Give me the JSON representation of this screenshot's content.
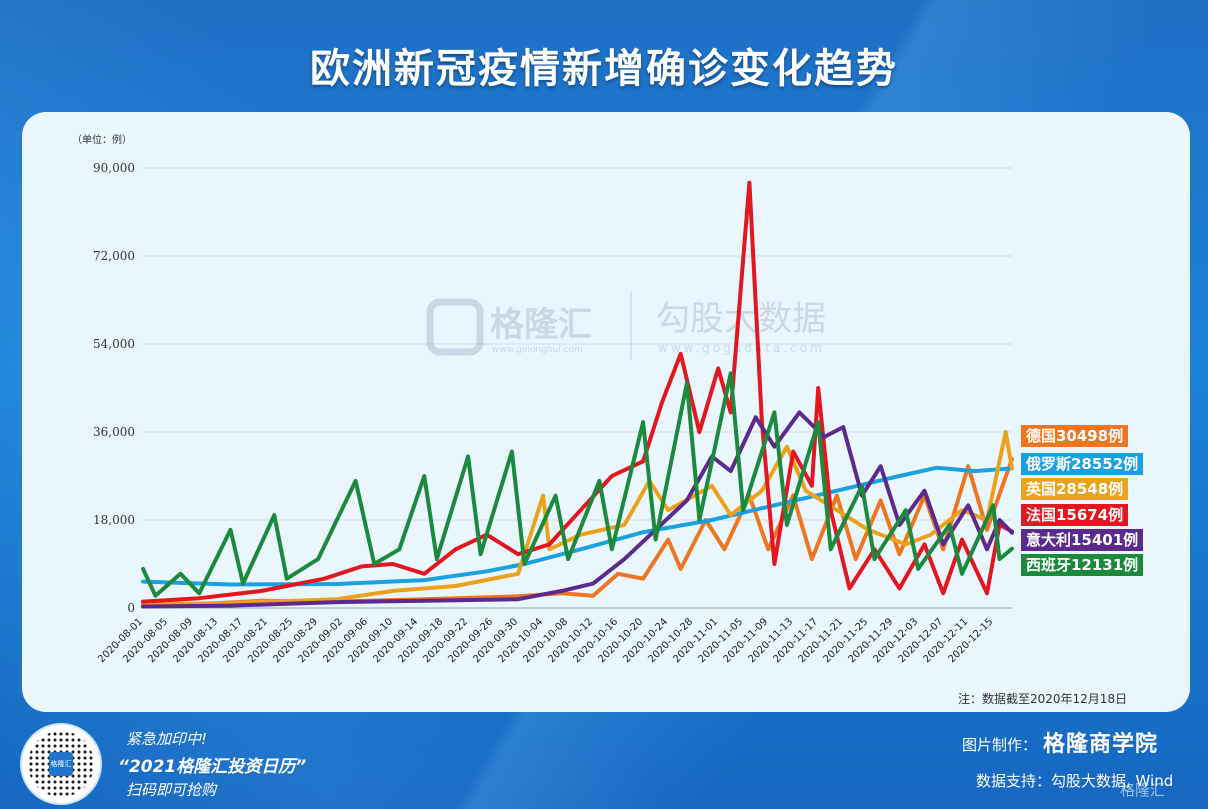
{
  "title": "欧洲新冠疫情新增确诊变化趋势",
  "unit_label": "（单位：例）",
  "note": "注：数据截至2020年12月18日",
  "watermark": {
    "brand1": "格隆汇",
    "brand1_url": "www.gelonghui.com",
    "brand2": "勾股大数据",
    "brand2_url": "www.gogudata.com"
  },
  "footer": {
    "promo_line1": "紧急加印中!",
    "promo_line2": "“2021格隆汇投资日历”",
    "promo_line3": "扫码即可抢购",
    "credit_label": "图片制作：",
    "credit_brand": "格隆商学院",
    "source_label": "数据支持：勾股大数据, Wind",
    "corner_logo": "格隆汇",
    "qr_center": "格隆汇"
  },
  "legend": [
    {
      "text": "德国30498例",
      "color": "#ee7623"
    },
    {
      "text": "俄罗斯28552例",
      "color": "#1ba1e2"
    },
    {
      "text": "英国28548例",
      "color": "#eba11b"
    },
    {
      "text": "法国15674例",
      "color": "#e3171f"
    },
    {
      "text": "意大利15401例",
      "color": "#5b2a8c"
    },
    {
      "text": "西班牙12131例",
      "color": "#1c8a3c"
    }
  ],
  "chart_data": {
    "type": "line",
    "ylim": [
      0,
      90000
    ],
    "yticks": [
      0,
      18000,
      36000,
      54000,
      72000,
      90000
    ],
    "ytick_labels": [
      "0",
      "18,000",
      "36,000",
      "54,000",
      "72,000",
      "90,000"
    ],
    "x_start": "2020-08-01",
    "x_end": "2020-12-18",
    "xtick_labels": [
      "2020-08-01",
      "2020-08-05",
      "2020-08-09",
      "2020-08-13",
      "2020-08-17",
      "2020-08-21",
      "2020-08-25",
      "2020-08-29",
      "2020-09-02",
      "2020-09-06",
      "2020-09-10",
      "2020-09-14",
      "2020-09-18",
      "2020-09-22",
      "2020-09-26",
      "2020-09-30",
      "2020-10-04",
      "2020-10-08",
      "2020-10-12",
      "2020-10-16",
      "2020-10-20",
      "2020-10-24",
      "2020-10-28",
      "2020-11-01",
      "2020-11-05",
      "2020-11-09",
      "2020-11-13",
      "2020-11-17",
      "2020-11-21",
      "2020-11-25",
      "2020-11-29",
      "2020-12-03",
      "2020-12-07",
      "2020-12-11",
      "2020-12-15"
    ],
    "grid": true,
    "series": [
      {
        "name": "德国",
        "color": "#ee7623",
        "points": [
          [
            "2020-08-01",
            500
          ],
          [
            "2020-08-10",
            800
          ],
          [
            "2020-08-20",
            1500
          ],
          [
            "2020-09-01",
            1300
          ],
          [
            "2020-09-15",
            1800
          ],
          [
            "2020-09-30",
            2400
          ],
          [
            "2020-10-07",
            3000
          ],
          [
            "2020-10-12",
            2500
          ],
          [
            "2020-10-16",
            7000
          ],
          [
            "2020-10-20",
            6000
          ],
          [
            "2020-10-24",
            14000
          ],
          [
            "2020-10-26",
            8000
          ],
          [
            "2020-10-30",
            18000
          ],
          [
            "2020-11-02",
            12000
          ],
          [
            "2020-11-06",
            23000
          ],
          [
            "2020-11-09",
            12000
          ],
          [
            "2020-11-13",
            23000
          ],
          [
            "2020-11-16",
            10000
          ],
          [
            "2020-11-20",
            23000
          ],
          [
            "2020-11-23",
            10000
          ],
          [
            "2020-11-27",
            22000
          ],
          [
            "2020-11-30",
            11000
          ],
          [
            "2020-12-04",
            23000
          ],
          [
            "2020-12-07",
            12000
          ],
          [
            "2020-12-11",
            29000
          ],
          [
            "2020-12-14",
            16000
          ],
          [
            "2020-12-18",
            30498
          ]
        ]
      },
      {
        "name": "俄罗斯",
        "color": "#1ba1e2",
        "points": [
          [
            "2020-08-01",
            5400
          ],
          [
            "2020-08-15",
            4800
          ],
          [
            "2020-09-01",
            4900
          ],
          [
            "2020-09-15",
            5700
          ],
          [
            "2020-09-25",
            7500
          ],
          [
            "2020-10-01",
            9000
          ],
          [
            "2020-10-10",
            12000
          ],
          [
            "2020-10-20",
            15500
          ],
          [
            "2020-10-31",
            18000
          ],
          [
            "2020-11-10",
            21000
          ],
          [
            "2020-11-20",
            24000
          ],
          [
            "2020-11-30",
            27000
          ],
          [
            "2020-12-06",
            28700
          ],
          [
            "2020-12-12",
            28000
          ],
          [
            "2020-12-18",
            28552
          ]
        ]
      },
      {
        "name": "英国",
        "color": "#eba11b",
        "points": [
          [
            "2020-08-01",
            800
          ],
          [
            "2020-08-15",
            1000
          ],
          [
            "2020-09-01",
            1800
          ],
          [
            "2020-09-10",
            3500
          ],
          [
            "2020-09-20",
            4500
          ],
          [
            "2020-09-30",
            7000
          ],
          [
            "2020-10-04",
            23000
          ],
          [
            "2020-10-05",
            12000
          ],
          [
            "2020-10-10",
            15000
          ],
          [
            "2020-10-17",
            17000
          ],
          [
            "2020-10-21",
            26000
          ],
          [
            "2020-10-24",
            20000
          ],
          [
            "2020-10-31",
            25000
          ],
          [
            "2020-11-03",
            19000
          ],
          [
            "2020-11-08",
            24000
          ],
          [
            "2020-11-12",
            33000
          ],
          [
            "2020-11-15",
            24000
          ],
          [
            "2020-11-20",
            20000
          ],
          [
            "2020-11-25",
            16000
          ],
          [
            "2020-12-01",
            13000
          ],
          [
            "2020-12-05",
            15000
          ],
          [
            "2020-12-10",
            20000
          ],
          [
            "2020-12-14",
            18000
          ],
          [
            "2020-12-17",
            36000
          ],
          [
            "2020-12-18",
            28548
          ]
        ]
      },
      {
        "name": "法国",
        "color": "#e3171f",
        "points": [
          [
            "2020-08-01",
            1300
          ],
          [
            "2020-08-10",
            2000
          ],
          [
            "2020-08-20",
            3500
          ],
          [
            "2020-08-30",
            6000
          ],
          [
            "2020-09-05",
            8500
          ],
          [
            "2020-09-10",
            9000
          ],
          [
            "2020-09-15",
            7000
          ],
          [
            "2020-09-20",
            12000
          ],
          [
            "2020-09-25",
            15000
          ],
          [
            "2020-09-30",
            11000
          ],
          [
            "2020-10-05",
            13000
          ],
          [
            "2020-10-10",
            20000
          ],
          [
            "2020-10-15",
            27000
          ],
          [
            "2020-10-20",
            30000
          ],
          [
            "2020-10-23",
            42000
          ],
          [
            "2020-10-26",
            52000
          ],
          [
            "2020-10-29",
            36000
          ],
          [
            "2020-11-01",
            49000
          ],
          [
            "2020-11-03",
            40000
          ],
          [
            "2020-11-06",
            87000
          ],
          [
            "2020-11-08",
            38000
          ],
          [
            "2020-11-10",
            9000
          ],
          [
            "2020-11-13",
            32000
          ],
          [
            "2020-11-16",
            25000
          ],
          [
            "2020-11-17",
            45000
          ],
          [
            "2020-11-19",
            20000
          ],
          [
            "2020-11-22",
            4000
          ],
          [
            "2020-11-26",
            12000
          ],
          [
            "2020-11-30",
            4000
          ],
          [
            "2020-12-04",
            13000
          ],
          [
            "2020-12-07",
            3000
          ],
          [
            "2020-12-10",
            14000
          ],
          [
            "2020-12-14",
            3000
          ],
          [
            "2020-12-16",
            17000
          ],
          [
            "2020-12-18",
            15674
          ]
        ]
      },
      {
        "name": "意大利",
        "color": "#5b2a8c",
        "points": [
          [
            "2020-08-01",
            300
          ],
          [
            "2020-08-15",
            500
          ],
          [
            "2020-09-01",
            1200
          ],
          [
            "2020-09-15",
            1500
          ],
          [
            "2020-09-30",
            1800
          ],
          [
            "2020-10-07",
            3500
          ],
          [
            "2020-10-12",
            5000
          ],
          [
            "2020-10-17",
            10000
          ],
          [
            "2020-10-22",
            16000
          ],
          [
            "2020-10-27",
            22000
          ],
          [
            "2020-10-31",
            31000
          ],
          [
            "2020-11-03",
            28000
          ],
          [
            "2020-11-07",
            39000
          ],
          [
            "2020-11-10",
            33000
          ],
          [
            "2020-11-14",
            40000
          ],
          [
            "2020-11-18",
            35000
          ],
          [
            "2020-11-21",
            37000
          ],
          [
            "2020-11-24",
            23000
          ],
          [
            "2020-11-27",
            29000
          ],
          [
            "2020-11-30",
            17000
          ],
          [
            "2020-12-04",
            24000
          ],
          [
            "2020-12-07",
            13000
          ],
          [
            "2020-12-11",
            21000
          ],
          [
            "2020-12-14",
            12000
          ],
          [
            "2020-12-16",
            18000
          ],
          [
            "2020-12-18",
            15401
          ]
        ]
      },
      {
        "name": "西班牙",
        "color": "#1c8a3c",
        "points": [
          [
            "2020-08-01",
            8000
          ],
          [
            "2020-08-03",
            2500
          ],
          [
            "2020-08-07",
            7000
          ],
          [
            "2020-08-10",
            3000
          ],
          [
            "2020-08-15",
            16000
          ],
          [
            "2020-08-17",
            5000
          ],
          [
            "2020-08-22",
            19000
          ],
          [
            "2020-08-24",
            6000
          ],
          [
            "2020-08-29",
            10000
          ],
          [
            "2020-09-04",
            26000
          ],
          [
            "2020-09-07",
            9000
          ],
          [
            "2020-09-11",
            12000
          ],
          [
            "2020-09-15",
            27000
          ],
          [
            "2020-09-17",
            10000
          ],
          [
            "2020-09-22",
            31000
          ],
          [
            "2020-09-24",
            11000
          ],
          [
            "2020-09-29",
            32000
          ],
          [
            "2020-10-01",
            9000
          ],
          [
            "2020-10-06",
            23000
          ],
          [
            "2020-10-08",
            10000
          ],
          [
            "2020-10-13",
            26000
          ],
          [
            "2020-10-15",
            12000
          ],
          [
            "2020-10-20",
            38000
          ],
          [
            "2020-10-22",
            14000
          ],
          [
            "2020-10-27",
            46000
          ],
          [
            "2020-10-29",
            18000
          ],
          [
            "2020-11-03",
            48000
          ],
          [
            "2020-11-05",
            20000
          ],
          [
            "2020-11-10",
            40000
          ],
          [
            "2020-11-12",
            17000
          ],
          [
            "2020-11-17",
            38000
          ],
          [
            "2020-11-19",
            12000
          ],
          [
            "2020-11-24",
            25000
          ],
          [
            "2020-11-26",
            10000
          ],
          [
            "2020-12-01",
            20000
          ],
          [
            "2020-12-03",
            8000
          ],
          [
            "2020-12-08",
            17000
          ],
          [
            "2020-12-10",
            7000
          ],
          [
            "2020-12-15",
            21000
          ],
          [
            "2020-12-16",
            10000
          ],
          [
            "2020-12-18",
            12131
          ]
        ]
      }
    ]
  }
}
